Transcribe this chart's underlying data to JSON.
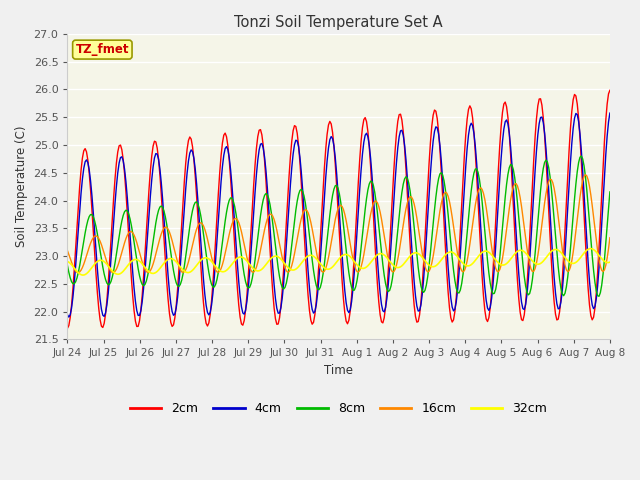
{
  "title": "Tonzi Soil Temperature Set A",
  "xlabel": "Time",
  "ylabel": "Soil Temperature (C)",
  "ylim": [
    21.5,
    27.0
  ],
  "fig_facecolor": "#f0f0f0",
  "plot_bg_color": "#f5f5e8",
  "label_box_text": "TZ_fmet",
  "label_box_facecolor": "#ffff99",
  "label_box_edgecolor": "#999900",
  "label_box_textcolor": "#cc0000",
  "colors": {
    "2cm": "#ff0000",
    "4cm": "#0000cc",
    "8cm": "#00bb00",
    "16cm": "#ff8800",
    "32cm": "#ffff00"
  },
  "legend_labels": [
    "2cm",
    "4cm",
    "8cm",
    "16cm",
    "32cm"
  ],
  "tick_labels": [
    "Jul 24",
    "Jul 25",
    "Jul 26",
    "Jul 27",
    "Jul 28",
    "Jul 29",
    "Jul 30",
    "Jul 31",
    "Aug 1",
    "Aug 2",
    "Aug 3",
    "Aug 4",
    "Aug 5",
    "Aug 6",
    "Aug 7",
    "Aug 8"
  ],
  "n_ticks": 16,
  "yticks": [
    21.5,
    22.0,
    22.5,
    23.0,
    23.5,
    24.0,
    24.5,
    25.0,
    25.5,
    26.0,
    26.5,
    27.0
  ]
}
